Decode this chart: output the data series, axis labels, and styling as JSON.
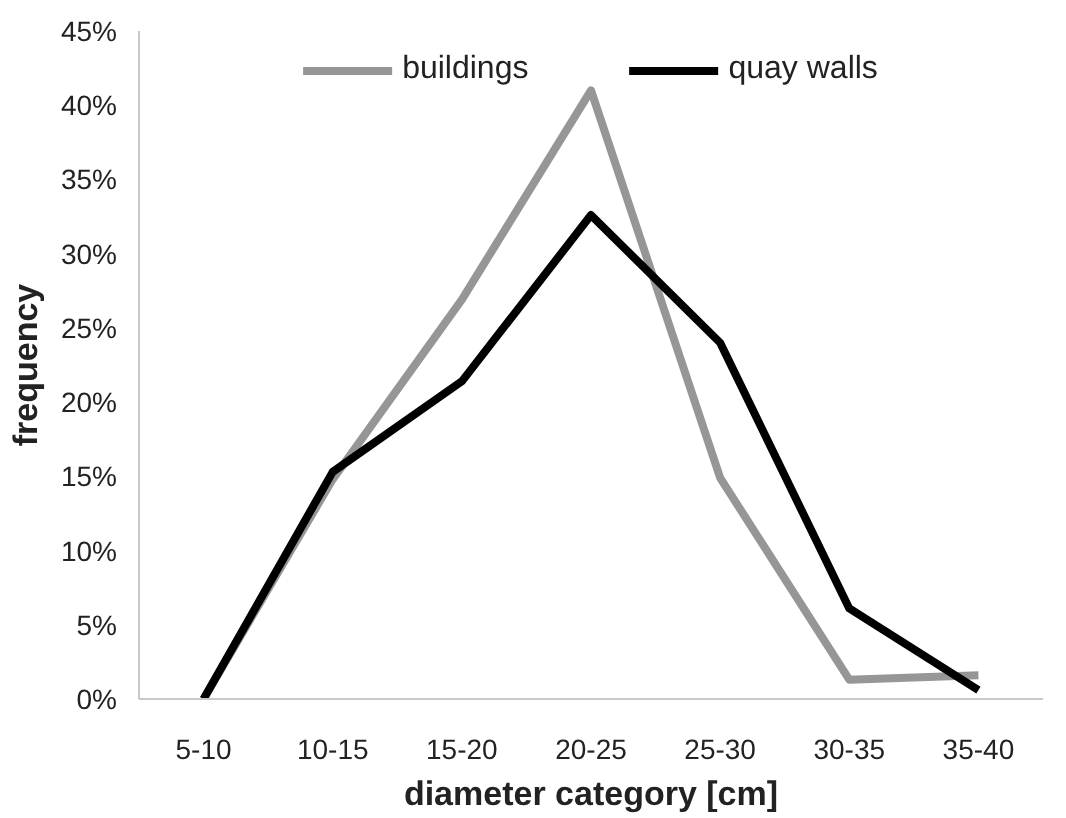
{
  "chart_data": {
    "type": "line",
    "xlabel": "diameter category [cm]",
    "ylabel": "frequency",
    "categories": [
      "5-10",
      "10-15",
      "15-20",
      "20-25",
      "25-30",
      "30-35",
      "35-40"
    ],
    "series": [
      {
        "name": "buildings",
        "color": "#969696",
        "values": [
          0,
          14.8,
          26.9,
          41.0,
          14.9,
          1.3,
          1.6
        ]
      },
      {
        "name": "quay walls",
        "color": "#000000",
        "values": [
          0,
          15.3,
          21.4,
          32.6,
          24.0,
          6.1,
          0.6
        ]
      }
    ],
    "ylim": [
      0,
      45
    ],
    "yticks": [
      {
        "value": 0,
        "label": "0%"
      },
      {
        "value": 5,
        "label": "5%"
      },
      {
        "value": 10,
        "label": "10%"
      },
      {
        "value": 15,
        "label": "15%"
      },
      {
        "value": 20,
        "label": "20%"
      },
      {
        "value": 25,
        "label": "25%"
      },
      {
        "value": 30,
        "label": "30%"
      },
      {
        "value": 35,
        "label": "35%"
      },
      {
        "value": 40,
        "label": "40%"
      },
      {
        "value": 45,
        "label": "45%"
      }
    ],
    "grid": false,
    "legend": "top",
    "marker": "none",
    "line_style": "solid"
  }
}
